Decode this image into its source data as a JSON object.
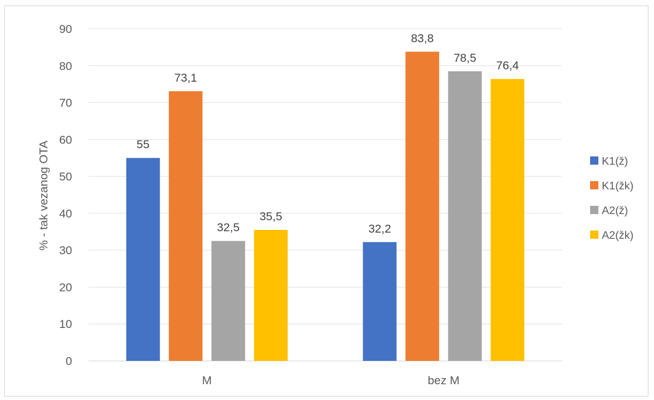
{
  "chart_data": {
    "type": "bar",
    "title": "",
    "xlabel": "",
    "ylabel": "% - tak vezanog OTA",
    "ylim": [
      0,
      90
    ],
    "yticks": [
      0,
      10,
      20,
      30,
      40,
      50,
      60,
      70,
      80,
      90
    ],
    "categories": [
      "M",
      "bez M"
    ],
    "series": [
      {
        "name": "K1(ž)",
        "color": "#4472c4",
        "values": [
          55,
          32.2
        ],
        "labels": [
          "55",
          "32,2"
        ]
      },
      {
        "name": "K1(žk)",
        "color": "#ed7d31",
        "values": [
          73.1,
          83.8
        ],
        "labels": [
          "73,1",
          "83,8"
        ]
      },
      {
        "name": "A2(ž)",
        "color": "#a5a5a5",
        "values": [
          32.5,
          78.5
        ],
        "labels": [
          "32,5",
          "78,5"
        ]
      },
      {
        "name": "A2(žk)",
        "color": "#ffc000",
        "values": [
          35.5,
          76.4
        ],
        "labels": [
          "35,5",
          "76,4"
        ]
      }
    ],
    "grid": true,
    "legend_position": "right"
  }
}
